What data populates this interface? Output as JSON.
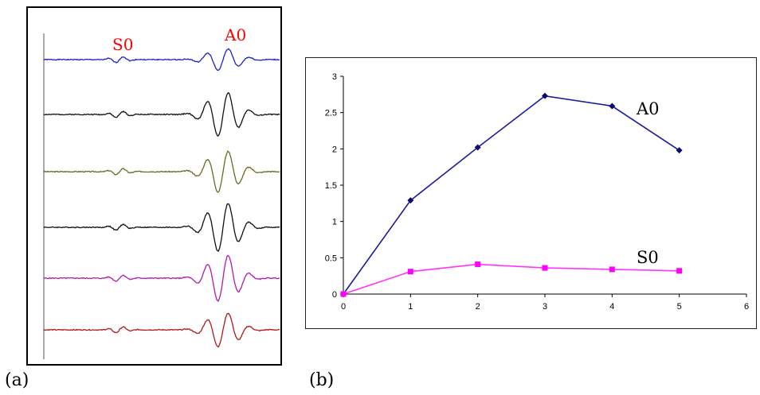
{
  "captions": {
    "a": "(a)",
    "b": "(b)"
  },
  "panel_a": {
    "labels": {
      "s0": "S0",
      "a0": "A0"
    },
    "label_color": "#ff0000",
    "trace_colors": [
      "#1f1fcc",
      "#111111",
      "#6b6b1f",
      "#111111",
      "#b01ab0",
      "#b01a1a"
    ],
    "trace_amplitudes": [
      0.45,
      0.9,
      0.85,
      1.0,
      0.95,
      0.7
    ]
  },
  "chart_data": {
    "type": "line",
    "xlim": [
      0,
      6
    ],
    "ylim": [
      0,
      3
    ],
    "x_ticks": [
      "0",
      "1",
      "2",
      "3",
      "4",
      "5",
      "6"
    ],
    "y_ticks": [
      "0",
      "0.5",
      "1",
      "1.5",
      "2",
      "2.5",
      "3"
    ],
    "series": [
      {
        "name": "A0",
        "color": "#1c1c9e",
        "marker": "diamond",
        "marker_color": "#0b0b6e",
        "x": [
          0,
          1,
          2,
          3,
          4,
          5
        ],
        "values": [
          0,
          1.29,
          2.02,
          2.73,
          2.59,
          1.98
        ]
      },
      {
        "name": "S0",
        "color": "#ff33ff",
        "marker": "square",
        "marker_color": "#ff00ff",
        "x": [
          0,
          1,
          2,
          3,
          4,
          5
        ],
        "values": [
          0,
          0.31,
          0.41,
          0.36,
          0.34,
          0.32
        ]
      }
    ]
  }
}
